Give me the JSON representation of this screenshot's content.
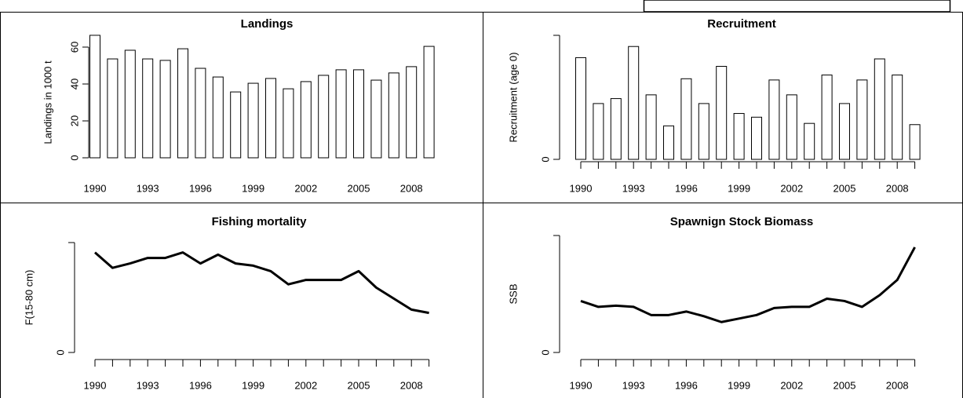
{
  "chart_data": [
    {
      "type": "bar",
      "title": "Landings",
      "ylabel": "Landings in 1000 t",
      "color": "#ffffff",
      "x": [
        1990,
        1991,
        1992,
        1993,
        1994,
        1995,
        1996,
        1997,
        1998,
        1999,
        2000,
        2001,
        2002,
        2003,
        2004,
        2005,
        2006,
        2007,
        2008,
        2009
      ],
      "values": [
        66.4,
        53.6,
        58.3,
        53.6,
        52.8,
        59.1,
        48.5,
        43.8,
        35.7,
        40.4,
        43,
        37.4,
        41.3,
        44.7,
        47.7,
        47.7,
        42.1,
        46,
        49.4,
        60.4
      ],
      "xlim": [
        1990,
        2009
      ],
      "xticks": [
        1990,
        1993,
        1996,
        1999,
        2002,
        2005,
        2008
      ],
      "ylim": [
        0,
        60
      ],
      "yticks": [
        0,
        20,
        40,
        60
      ]
    },
    {
      "type": "bar",
      "title": "Recruitment",
      "ylabel": "Recruitment (age 0)",
      "color": "#ffffff",
      "x": [
        1990,
        1991,
        1992,
        1993,
        1994,
        1995,
        1996,
        1997,
        1998,
        1999,
        2000,
        2001,
        2002,
        2003,
        2004,
        2005,
        2006,
        2007,
        2008,
        2009
      ],
      "values": [
        0.82,
        0.45,
        0.49,
        0.91,
        0.52,
        0.27,
        0.65,
        0.45,
        0.75,
        0.37,
        0.34,
        0.64,
        0.52,
        0.29,
        0.68,
        0.45,
        0.64,
        0.81,
        0.68,
        0.28
      ],
      "xlim": [
        1990,
        2009
      ],
      "xticks": [
        1990,
        1993,
        1996,
        1999,
        2002,
        2005,
        2008
      ],
      "ylim": [
        0,
        1
      ],
      "yticks": [
        0,
        {
          "value": 1,
          "label": null
        }
      ]
    },
    {
      "type": "line",
      "title": "Fishing mortality",
      "ylabel": "F(15-80 cm)",
      "color": "#000000",
      "x": [
        1990,
        1991,
        1992,
        1993,
        1994,
        1995,
        1996,
        1997,
        1998,
        1999,
        2000,
        2001,
        2002,
        2003,
        2004,
        2005,
        2006,
        2007,
        2008,
        2009
      ],
      "values": [
        0.91,
        0.77,
        0.81,
        0.86,
        0.86,
        0.91,
        0.81,
        0.89,
        0.81,
        0.79,
        0.74,
        0.62,
        0.66,
        0.66,
        0.66,
        0.74,
        0.59,
        0.49,
        0.39,
        0.36
      ],
      "xlim": [
        1990,
        2009
      ],
      "xticks": [
        1990,
        1993,
        1996,
        1999,
        2002,
        2005,
        2008
      ],
      "ylim": [
        0,
        1
      ],
      "yticks": [
        0,
        {
          "value": 1,
          "label": null
        }
      ]
    },
    {
      "type": "line",
      "title": "Spawnign Stock Biomass",
      "ylabel": "SSB",
      "color": "#000000",
      "x": [
        1990,
        1991,
        1992,
        1993,
        1994,
        1995,
        1996,
        1997,
        1998,
        1999,
        2000,
        2001,
        2002,
        2003,
        2004,
        2005,
        2006,
        2007,
        2008,
        2009
      ],
      "values": [
        0.44,
        0.39,
        0.4,
        0.39,
        0.32,
        0.32,
        0.35,
        0.31,
        0.26,
        0.29,
        0.32,
        0.38,
        0.39,
        0.39,
        0.46,
        0.44,
        0.39,
        0.49,
        0.62,
        0.9
      ],
      "xlim": [
        1990,
        2009
      ],
      "xticks": [
        1990,
        1993,
        1996,
        1999,
        2002,
        2005,
        2008
      ],
      "ylim": [
        0,
        1
      ],
      "yticks": [
        0,
        {
          "value": 1,
          "label": null
        }
      ]
    }
  ]
}
